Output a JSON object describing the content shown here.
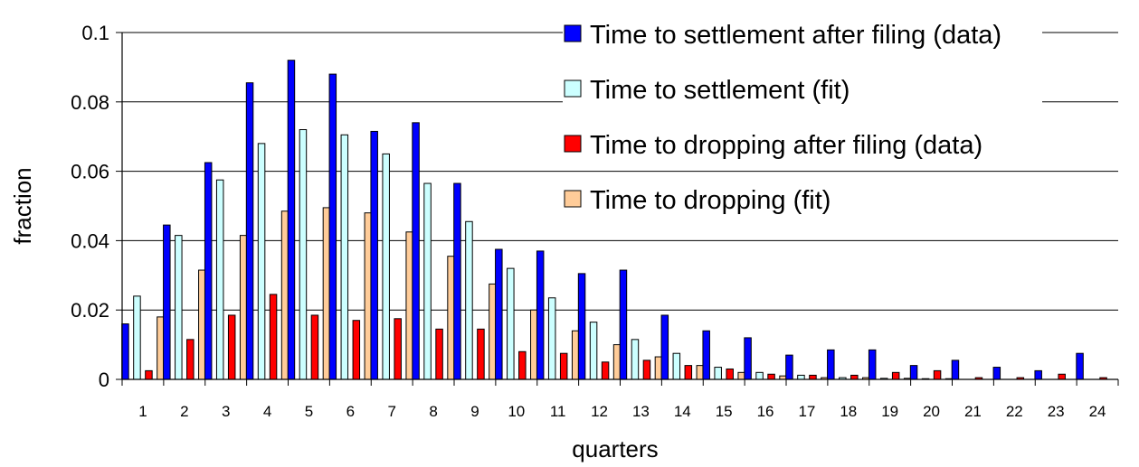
{
  "chart_data": {
    "type": "bar",
    "xlabel": "quarters",
    "ylabel": "fraction",
    "ylim": [
      0,
      0.1
    ],
    "yticks": [
      "0",
      "0.02",
      "0.04",
      "0.06",
      "0.08",
      "0.1"
    ],
    "grid": "horizontal",
    "legend_position": "top-right",
    "categories": [
      "1",
      "2",
      "3",
      "4",
      "5",
      "6",
      "7",
      "8",
      "9",
      "10",
      "11",
      "12",
      "13",
      "14",
      "15",
      "16",
      "17",
      "18",
      "19",
      "20",
      "21",
      "22",
      "23",
      "24"
    ],
    "series": [
      {
        "name": "Time to settlement after filing (data)",
        "color": "#0000ff",
        "values": [
          0.016,
          0.0445,
          0.0625,
          0.0855,
          0.092,
          0.088,
          0.0715,
          0.074,
          0.0565,
          0.0375,
          0.037,
          0.0305,
          0.0315,
          0.0185,
          0.014,
          0.012,
          0.007,
          0.0085,
          0.0085,
          0.004,
          0.0055,
          0.0035,
          0.0025,
          0.0075
        ]
      },
      {
        "name": "Time to settlement (fit)",
        "color": "#ccffff",
        "values": [
          0.024,
          0.0415,
          0.0575,
          0.068,
          0.072,
          0.0705,
          0.065,
          0.0565,
          0.0455,
          0.032,
          0.0235,
          0.0165,
          0.0115,
          0.0075,
          0.0035,
          0.002,
          0.0012,
          0.0005,
          0.0003,
          0.0002,
          0.0001,
          0.0001,
          0.0,
          0.0
        ]
      },
      {
        "name": "Time to dropping after filing (data)",
        "color": "#ff0000",
        "values": [
          0.0025,
          0.0115,
          0.0185,
          0.0245,
          0.0185,
          0.017,
          0.0175,
          0.0145,
          0.0145,
          0.008,
          0.0075,
          0.005,
          0.0055,
          0.004,
          0.003,
          0.0015,
          0.0012,
          0.0012,
          0.002,
          0.0025,
          0.0005,
          0.0005,
          0.0015,
          0.0005
        ]
      },
      {
        "name": "Time to dropping (fit)",
        "color": "#ffcc99",
        "values": [
          0.018,
          0.0315,
          0.0415,
          0.0485,
          0.0495,
          0.048,
          0.0425,
          0.0355,
          0.0275,
          0.02,
          0.014,
          0.01,
          0.0065,
          0.004,
          0.002,
          0.001,
          0.0005,
          0.0005,
          0.0003,
          0.0002,
          0.0001,
          0.0001,
          0.0,
          0.0
        ]
      }
    ]
  }
}
